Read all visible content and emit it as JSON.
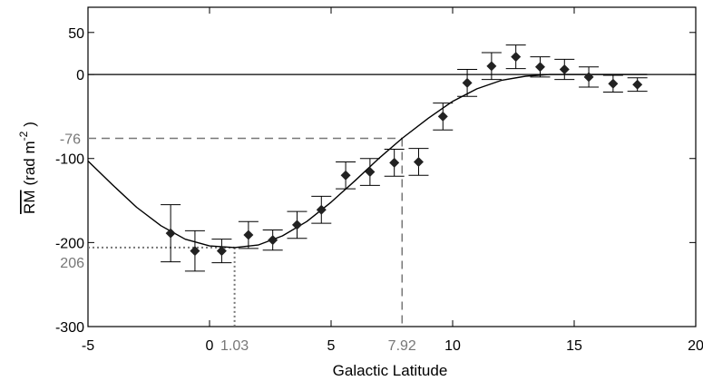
{
  "chart_data": {
    "type": "scatter",
    "xlabel": "Galactic Latitude",
    "ylabel_main": "RM",
    "ylabel_units": "(rad m",
    "ylabel_exp": "-2",
    "ylabel_close": ")",
    "xlim": [
      -5,
      20
    ],
    "ylim": [
      -300,
      80
    ],
    "x_ticks": [
      -5,
      0,
      5,
      10,
      15,
      20
    ],
    "x_tick_labels": [
      "-5",
      "0",
      "5",
      "10",
      "15",
      "20"
    ],
    "y_ticks": [
      50,
      0,
      -100,
      -200,
      -300
    ],
    "y_tick_labels": [
      "50",
      "0",
      "-100",
      "-200",
      "-300"
    ],
    "grid": false,
    "series": [
      {
        "x": [
          -1.6,
          -0.6,
          0.5,
          1.6,
          2.6,
          3.6,
          4.6,
          5.6,
          6.6,
          7.6,
          8.6,
          9.6,
          10.6,
          11.6,
          12.6,
          13.6,
          14.6,
          15.6,
          16.6,
          17.6
        ],
        "y": [
          -189,
          -210,
          -210,
          -191,
          -197,
          -179,
          -161,
          -120,
          -116,
          -105,
          -104,
          -50,
          -10,
          10,
          21,
          9,
          6,
          -3,
          -11,
          -12
        ],
        "err": [
          34,
          24,
          14,
          16,
          12,
          16,
          16,
          16,
          16,
          16,
          16,
          16,
          16,
          16,
          14,
          12,
          12,
          12,
          10,
          8
        ]
      }
    ],
    "fit_curve": {
      "x": [
        -5,
        -4,
        -3,
        -2,
        -1,
        0,
        1.03,
        2,
        3,
        4,
        5,
        6,
        7,
        7.92,
        9,
        10,
        11,
        12,
        13,
        14,
        14.5,
        15,
        16,
        17,
        18
      ],
      "y": [
        -103,
        -131,
        -158,
        -180,
        -196,
        -204,
        -206,
        -203,
        -192,
        -175,
        -152,
        -126,
        -99,
        -76,
        -52,
        -32,
        -17,
        -7,
        -2,
        0,
        0,
        0,
        0,
        0,
        0
      ]
    },
    "annotations": [
      {
        "label": "-76",
        "x": 7.92,
        "y": -76,
        "style": "dashed"
      },
      {
        "label": "7.92",
        "x": 7.92,
        "y": -76,
        "style": "dashed"
      },
      {
        "label": "206",
        "x": 1.03,
        "y": -206,
        "style": "dotted"
      },
      {
        "label": "1.03",
        "x": 1.03,
        "y": -206,
        "style": "dotted"
      }
    ]
  }
}
